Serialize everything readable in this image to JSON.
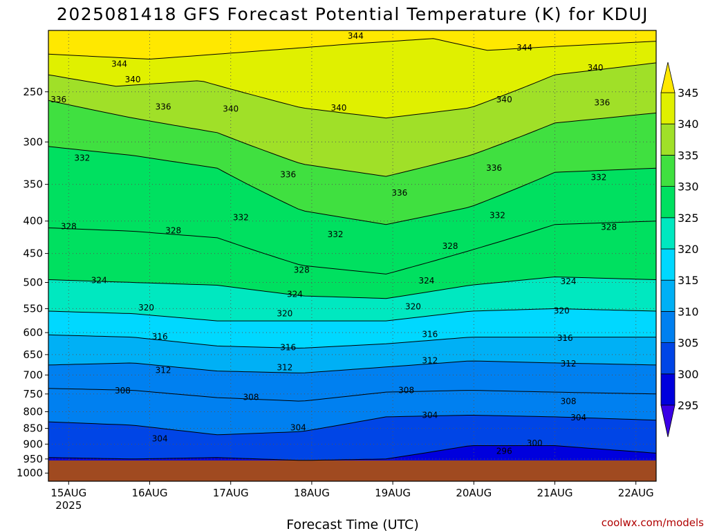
{
  "chart_data": {
    "type": "heatmap",
    "title": "2025081418 GFS Forecast Potential Temperature (K) for KDUJ",
    "xlabel": "Forecast Time (UTC)",
    "ylabel": "",
    "credit": "coolwx.com/models",
    "x_ticks": [
      {
        "label": "15AUG",
        "sub": "2025",
        "hours": 6
      },
      {
        "label": "16AUG",
        "sub": "",
        "hours": 30
      },
      {
        "label": "17AUG",
        "sub": "",
        "hours": 54
      },
      {
        "label": "18AUG",
        "sub": "",
        "hours": 78
      },
      {
        "label": "19AUG",
        "sub": "",
        "hours": 102
      },
      {
        "label": "20AUG",
        "sub": "",
        "hours": 126
      },
      {
        "label": "21AUG",
        "sub": "",
        "hours": 150
      },
      {
        "label": "22AUG",
        "sub": "",
        "hours": 174
      }
    ],
    "xlim_hours": [
      0,
      180
    ],
    "y_ticks": [
      250,
      300,
      350,
      400,
      450,
      500,
      550,
      600,
      650,
      700,
      750,
      800,
      850,
      900,
      950,
      1000
    ],
    "ylim_hPa": [
      200,
      1030
    ],
    "y_scale": "log",
    "ground_level_hPa": 955,
    "colorbar": {
      "levels": [
        295,
        300,
        305,
        310,
        315,
        320,
        325,
        330,
        335,
        340,
        345
      ],
      "colors": [
        "#3a00e6",
        "#0000dd",
        "#0045e6",
        "#0080f0",
        "#00b0f5",
        "#00d8ff",
        "#00e8c0",
        "#00e060",
        "#40e040",
        "#a0e028",
        "#e0f000",
        "#ffe800"
      ]
    },
    "ground_color": "#a04a20",
    "isentropes": [
      {
        "theta": 344,
        "profile": [
          [
            0,
            218
          ],
          [
            30,
            222
          ],
          [
            60,
            216
          ],
          [
            90,
            210
          ],
          [
            114,
            206
          ],
          [
            130,
            215
          ],
          [
            150,
            212
          ],
          [
            180,
            208
          ]
        ]
      },
      {
        "theta": 340,
        "profile": [
          [
            0,
            235
          ],
          [
            20,
            245
          ],
          [
            45,
            240
          ],
          [
            75,
            265
          ],
          [
            100,
            275
          ],
          [
            125,
            265
          ],
          [
            150,
            235
          ],
          [
            180,
            225
          ]
        ]
      },
      {
        "theta": 336,
        "profile": [
          [
            0,
            258
          ],
          [
            25,
            275
          ],
          [
            50,
            290
          ],
          [
            75,
            325
          ],
          [
            100,
            340
          ],
          [
            125,
            315
          ],
          [
            150,
            280
          ],
          [
            180,
            270
          ]
        ]
      },
      {
        "theta": 332,
        "profile": [
          [
            0,
            305
          ],
          [
            25,
            315
          ],
          [
            50,
            330
          ],
          [
            75,
            385
          ],
          [
            100,
            405
          ],
          [
            125,
            380
          ],
          [
            150,
            335
          ],
          [
            180,
            330
          ]
        ]
      },
      {
        "theta": 328,
        "profile": [
          [
            0,
            410
          ],
          [
            25,
            415
          ],
          [
            50,
            425
          ],
          [
            75,
            470
          ],
          [
            100,
            485
          ],
          [
            125,
            445
          ],
          [
            150,
            405
          ],
          [
            180,
            400
          ]
        ]
      },
      {
        "theta": 324,
        "profile": [
          [
            0,
            495
          ],
          [
            25,
            500
          ],
          [
            50,
            505
          ],
          [
            75,
            525
          ],
          [
            100,
            530
          ],
          [
            125,
            505
          ],
          [
            150,
            490
          ],
          [
            180,
            495
          ]
        ]
      },
      {
        "theta": 320,
        "profile": [
          [
            0,
            555
          ],
          [
            25,
            560
          ],
          [
            50,
            575
          ],
          [
            75,
            575
          ],
          [
            100,
            575
          ],
          [
            125,
            555
          ],
          [
            150,
            550
          ],
          [
            180,
            555
          ]
        ]
      },
      {
        "theta": 316,
        "profile": [
          [
            0,
            605
          ],
          [
            25,
            610
          ],
          [
            50,
            630
          ],
          [
            75,
            635
          ],
          [
            100,
            625
          ],
          [
            125,
            610
          ],
          [
            150,
            610
          ],
          [
            180,
            610
          ]
        ]
      },
      {
        "theta": 312,
        "profile": [
          [
            0,
            675
          ],
          [
            25,
            670
          ],
          [
            50,
            690
          ],
          [
            75,
            695
          ],
          [
            100,
            680
          ],
          [
            125,
            665
          ],
          [
            150,
            670
          ],
          [
            180,
            675
          ]
        ]
      },
      {
        "theta": 308,
        "profile": [
          [
            0,
            735
          ],
          [
            25,
            740
          ],
          [
            50,
            760
          ],
          [
            75,
            770
          ],
          [
            100,
            745
          ],
          [
            125,
            740
          ],
          [
            150,
            745
          ],
          [
            180,
            750
          ]
        ]
      },
      {
        "theta": 304,
        "profile": [
          [
            0,
            830
          ],
          [
            25,
            840
          ],
          [
            50,
            870
          ],
          [
            75,
            860
          ],
          [
            100,
            815
          ],
          [
            125,
            810
          ],
          [
            150,
            815
          ],
          [
            180,
            825
          ]
        ]
      },
      {
        "theta": 300,
        "profile": [
          [
            0,
            945
          ],
          [
            25,
            950
          ],
          [
            50,
            945
          ],
          [
            75,
            955
          ],
          [
            100,
            950
          ],
          [
            125,
            905
          ],
          [
            150,
            905
          ],
          [
            180,
            930
          ]
        ]
      }
    ],
    "contour_labels": [
      {
        "text": "344",
        "hours": 21,
        "hPa": 226
      },
      {
        "text": "344",
        "hours": 91,
        "hPa": 204
      },
      {
        "text": "344",
        "hours": 141,
        "hPa": 213
      },
      {
        "text": "340",
        "hours": 25,
        "hPa": 239
      },
      {
        "text": "340",
        "hours": 54,
        "hPa": 266
      },
      {
        "text": "340",
        "hours": 86,
        "hPa": 265
      },
      {
        "text": "340",
        "hours": 135,
        "hPa": 257
      },
      {
        "text": "340",
        "hours": 162,
        "hPa": 229
      },
      {
        "text": "336",
        "hours": 3,
        "hPa": 257
      },
      {
        "text": "336",
        "hours": 34,
        "hPa": 264
      },
      {
        "text": "336",
        "hours": 71,
        "hPa": 338
      },
      {
        "text": "336",
        "hours": 104,
        "hPa": 361
      },
      {
        "text": "336",
        "hours": 132,
        "hPa": 330
      },
      {
        "text": "336",
        "hours": 164,
        "hPa": 260
      },
      {
        "text": "332",
        "hours": 10,
        "hPa": 318
      },
      {
        "text": "332",
        "hours": 57,
        "hPa": 395
      },
      {
        "text": "332",
        "hours": 85,
        "hPa": 420
      },
      {
        "text": "332",
        "hours": 133,
        "hPa": 392
      },
      {
        "text": "332",
        "hours": 163,
        "hPa": 341
      },
      {
        "text": "328",
        "hours": 6,
        "hPa": 408
      },
      {
        "text": "328",
        "hours": 37,
        "hPa": 414
      },
      {
        "text": "328",
        "hours": 75,
        "hPa": 478
      },
      {
        "text": "328",
        "hours": 119,
        "hPa": 438
      },
      {
        "text": "328",
        "hours": 166,
        "hPa": 409
      },
      {
        "text": "324",
        "hours": 15,
        "hPa": 496
      },
      {
        "text": "324",
        "hours": 73,
        "hPa": 522
      },
      {
        "text": "324",
        "hours": 112,
        "hPa": 497
      },
      {
        "text": "324",
        "hours": 154,
        "hPa": 498
      },
      {
        "text": "320",
        "hours": 29,
        "hPa": 548
      },
      {
        "text": "320",
        "hours": 70,
        "hPa": 560
      },
      {
        "text": "320",
        "hours": 108,
        "hPa": 546
      },
      {
        "text": "320",
        "hours": 152,
        "hPa": 554
      },
      {
        "text": "316",
        "hours": 33,
        "hPa": 609
      },
      {
        "text": "316",
        "hours": 71,
        "hPa": 633
      },
      {
        "text": "316",
        "hours": 113,
        "hPa": 604
      },
      {
        "text": "316",
        "hours": 153,
        "hPa": 612
      },
      {
        "text": "312",
        "hours": 34,
        "hPa": 688
      },
      {
        "text": "312",
        "hours": 70,
        "hPa": 681
      },
      {
        "text": "312",
        "hours": 113,
        "hPa": 664
      },
      {
        "text": "312",
        "hours": 154,
        "hPa": 672
      },
      {
        "text": "308",
        "hours": 22,
        "hPa": 741
      },
      {
        "text": "308",
        "hours": 60,
        "hPa": 759
      },
      {
        "text": "308",
        "hours": 106,
        "hPa": 740
      },
      {
        "text": "308",
        "hours": 154,
        "hPa": 770
      },
      {
        "text": "304",
        "hours": 33,
        "hPa": 882
      },
      {
        "text": "304",
        "hours": 74,
        "hPa": 848
      },
      {
        "text": "304",
        "hours": 113,
        "hPa": 810
      },
      {
        "text": "304",
        "hours": 157,
        "hPa": 817
      },
      {
        "text": "300",
        "hours": 144,
        "hPa": 897
      },
      {
        "text": "296",
        "hours": 135,
        "hPa": 923
      }
    ]
  }
}
